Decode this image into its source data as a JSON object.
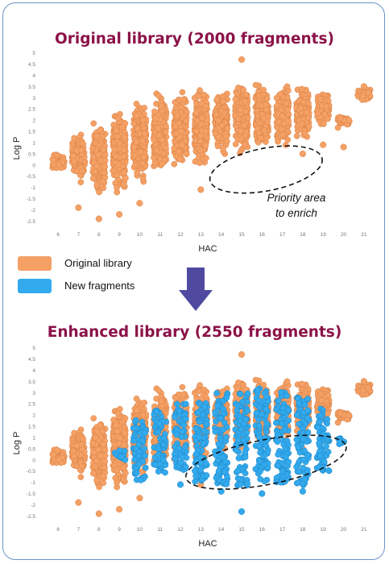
{
  "legend": {
    "items": [
      {
        "label": "Original library",
        "color": "#f5a065"
      },
      {
        "label": "New fragments",
        "color": "#33aaee"
      }
    ]
  },
  "colors": {
    "original": "#f5a065",
    "original_stroke": "#d98246",
    "new": "#33aaee",
    "new_stroke": "#1c84c2",
    "title": "#8b1248",
    "frame": "#6b93c9",
    "arrow": "#4f4aa0"
  },
  "chart_data": [
    {
      "type": "scatter",
      "title": "Original library (2000 fragments)",
      "xlabel": "HAC",
      "ylabel": "Log P",
      "xticks": [
        "6",
        "7",
        "8",
        "9",
        "10",
        "11",
        "12",
        "13",
        "14",
        "15",
        "16",
        "17",
        "18",
        "19",
        "20",
        "21"
      ],
      "yticks": [
        "5",
        "4.5",
        "4",
        "3.5",
        "3",
        "2.5",
        "2",
        "1.5",
        "1",
        "0.5",
        "0",
        "-0.5",
        "-1",
        "-1.5",
        "-2",
        "-2.5"
      ],
      "xlim": [
        5.6,
        21.4
      ],
      "ylim": [
        -2.7,
        5.2
      ],
      "grid": false,
      "annotation": {
        "text": [
          "Priority area",
          "to enrich"
        ],
        "ellipse_center": [
          16.2,
          -0.2
        ],
        "ellipse_radius": [
          2.8,
          0.95
        ]
      },
      "series": [
        {
          "columns": [
            {
              "x": 6,
              "min": -0.3,
              "max": 0.6
            },
            {
              "x": 7,
              "min": -0.8,
              "max": 1.6
            },
            {
              "x": 8,
              "min": -1.5,
              "max": 2.1
            },
            {
              "x": 9,
              "min": -1.5,
              "max": 2.9
            },
            {
              "x": 10,
              "min": -1.0,
              "max": 3.2
            },
            {
              "x": 11,
              "min": -0.5,
              "max": 3.4
            },
            {
              "x": 12,
              "min": -0.4,
              "max": 3.6
            },
            {
              "x": 13,
              "min": -0.3,
              "max": 3.7
            },
            {
              "x": 14,
              "min": 0.2,
              "max": 3.8
            },
            {
              "x": 15,
              "min": 0.4,
              "max": 3.9
            },
            {
              "x": 16,
              "min": 0.5,
              "max": 3.9
            },
            {
              "x": 17,
              "min": 0.6,
              "max": 3.8
            },
            {
              "x": 18,
              "min": 1.0,
              "max": 3.6
            },
            {
              "x": 19,
              "min": 1.6,
              "max": 3.5
            },
            {
              "x": 20,
              "min": 1.6,
              "max": 2.3
            },
            {
              "x": 21,
              "min": 2.7,
              "max": 3.5
            }
          ],
          "outliers": [
            [
              7,
              -1.9
            ],
            [
              8,
              -2.4
            ],
            [
              9,
              -2.2
            ],
            [
              10,
              -1.7
            ],
            [
              13,
              -1.1
            ],
            [
              15,
              4.7
            ],
            [
              18,
              0.5
            ],
            [
              20,
              0.8
            ],
            [
              19,
              0.9
            ],
            [
              21,
              3.5
            ]
          ]
        }
      ]
    },
    {
      "type": "scatter",
      "title": "Enhanced library (2550 fragments)",
      "xlabel": "HAC",
      "ylabel": "Log P",
      "xticks": [
        "6",
        "7",
        "8",
        "9",
        "10",
        "11",
        "12",
        "13",
        "14",
        "15",
        "16",
        "17",
        "18",
        "19",
        "20",
        "21"
      ],
      "yticks": [
        "5",
        "4.5",
        "4",
        "3.5",
        "3",
        "2.5",
        "2",
        "1.5",
        "1",
        "0.5",
        "0",
        "-0.5",
        "-1",
        "-1.5",
        "-2",
        "-2.5"
      ],
      "xlim": [
        5.6,
        21.4
      ],
      "ylim": [
        -2.7,
        5.2
      ],
      "grid": false,
      "annotation": {
        "ellipse_center": [
          16.2,
          -0.1
        ],
        "ellipse_radius": [
          4.0,
          1.0
        ]
      },
      "series": [
        {
          "name": "Original library",
          "same_as": "chart_data[0]"
        },
        {
          "name": "New fragments",
          "columns": [
            {
              "x": 9,
              "min": 0.0,
              "max": 0.5
            },
            {
              "x": 10,
              "min": -0.9,
              "max": 1.8
            },
            {
              "x": 11,
              "min": -0.6,
              "max": 2.2
            },
            {
              "x": 12,
              "min": -0.5,
              "max": 2.5
            },
            {
              "x": 13,
              "min": -1.0,
              "max": 2.6
            },
            {
              "x": 14,
              "min": -1.1,
              "max": 3.0
            },
            {
              "x": 15,
              "min": -1.2,
              "max": 3.0
            },
            {
              "x": 16,
              "min": -1.0,
              "max": 3.2
            },
            {
              "x": 17,
              "min": -1.1,
              "max": 3.1
            },
            {
              "x": 18,
              "min": -1.2,
              "max": 2.8
            },
            {
              "x": 19,
              "min": -0.5,
              "max": 2.3
            },
            {
              "x": 20,
              "min": 0.7,
              "max": 1.0
            }
          ],
          "outliers": [
            [
              15,
              -2.3
            ],
            [
              16,
              -1.5
            ],
            [
              18,
              -1.4
            ],
            [
              14,
              -1.4
            ],
            [
              12,
              -1.1
            ]
          ]
        }
      ]
    }
  ]
}
